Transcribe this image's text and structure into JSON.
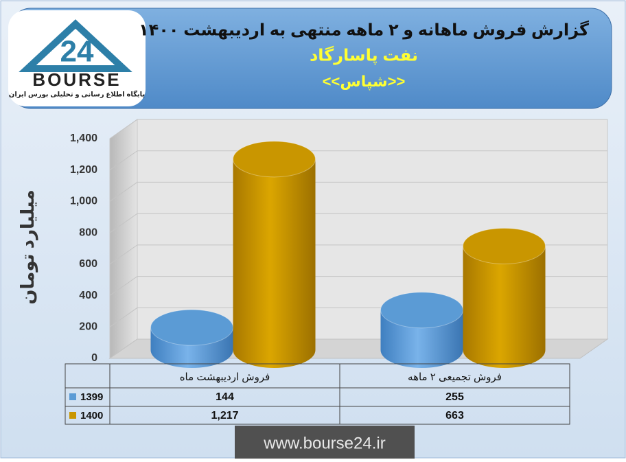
{
  "chart_data": {
    "type": "bar3d",
    "title": "گزارش فروش ماهانه و ۲ ماهه منتهی به اردیبهشت ۱۴۰۰",
    "subtitle": "نفت پاسارگاد",
    "symbol": "<<شپاس>>",
    "ylabel": "میلیارد تومان",
    "categories": [
      "فروش اردیبهشت  ماه",
      "فروش تجمیعی ۲ ماهه"
    ],
    "series": [
      {
        "name": "1399",
        "color": "#5b9bd5",
        "values": [
          144,
          255
        ],
        "value_labels": [
          "144",
          "255"
        ]
      },
      {
        "name": "1400",
        "color": "#c99600",
        "values": [
          1217,
          663
        ],
        "value_labels": [
          "1,217",
          "663"
        ]
      }
    ],
    "ylim": [
      0,
      1400
    ],
    "yticks": [
      0,
      200,
      400,
      600,
      800,
      {
        "value": 1000,
        "label": "1,000"
      },
      {
        "value": 1200,
        "label": "1,200"
      },
      {
        "value": 1400,
        "label": "1,400"
      }
    ],
    "grid": true,
    "logo": {
      "text": "BOURSE",
      "number": "24",
      "caption": "پایگاه اطلاع رسانی و تحلیلی بورس ایران"
    },
    "footer": "www.bourse24.ir"
  }
}
